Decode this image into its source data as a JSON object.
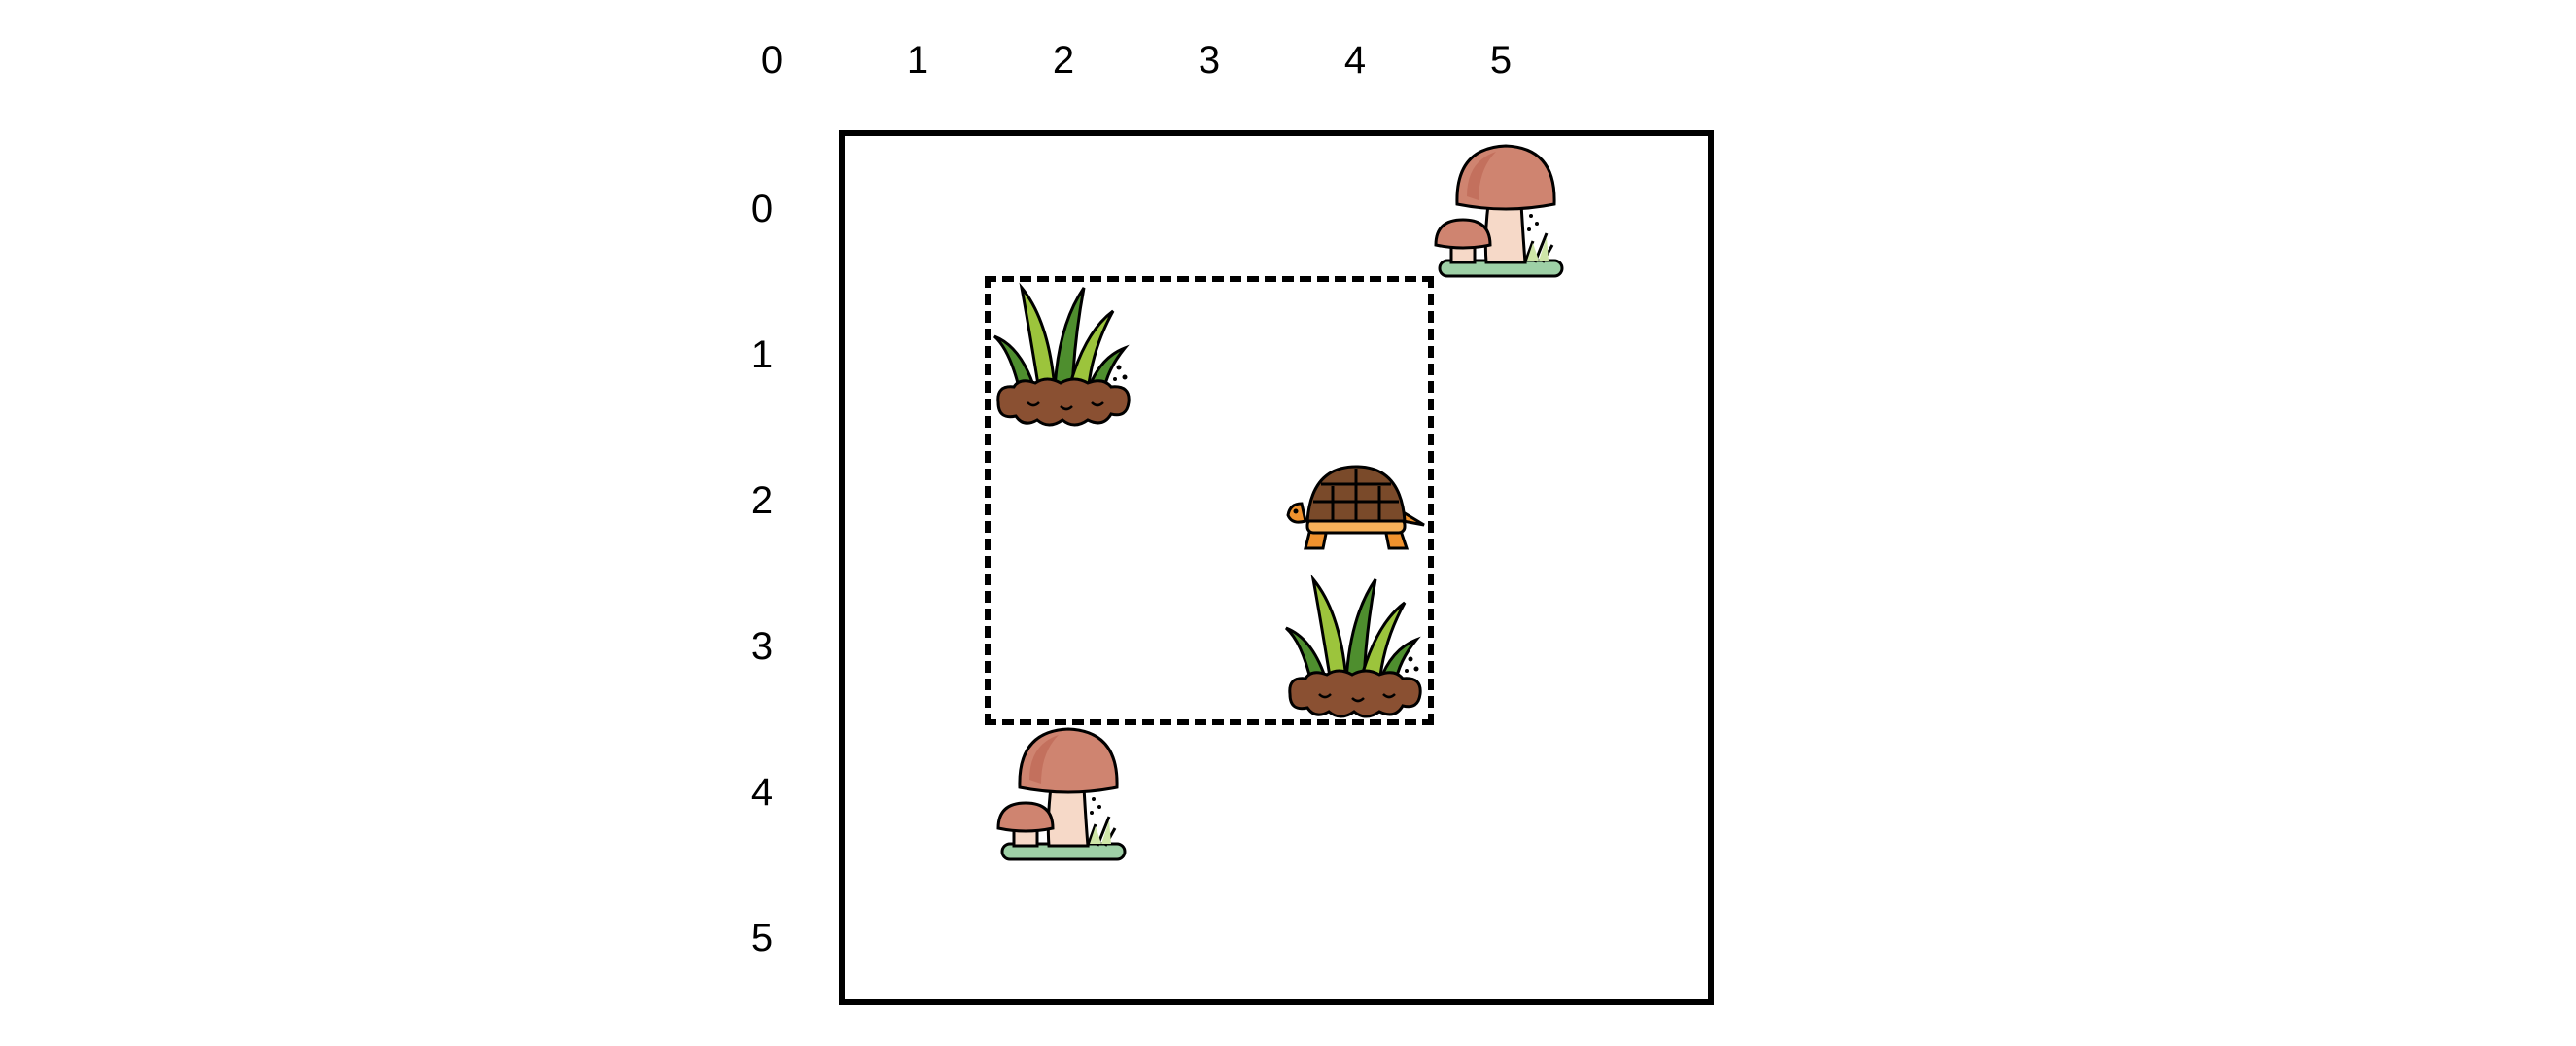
{
  "grid": {
    "cols": 6,
    "rows": 6,
    "col_labels": [
      "0",
      "1",
      "2",
      "3",
      "4",
      "5"
    ],
    "row_labels": [
      "0",
      "1",
      "2",
      "3",
      "4",
      "5"
    ]
  },
  "selection_region": {
    "col_start": 1,
    "row_start": 1,
    "col_end": 4,
    "row_end": 3
  },
  "pieces": [
    {
      "type": "mushroom",
      "icon": "mushroom-icon",
      "col": 4,
      "row": 0
    },
    {
      "type": "grass",
      "icon": "grass-icon",
      "col": 1,
      "row": 1
    },
    {
      "type": "turtle",
      "icon": "turtle-icon",
      "col": 3,
      "row": 2
    },
    {
      "type": "grass",
      "icon": "grass-icon",
      "col": 3,
      "row": 3
    },
    {
      "type": "mushroom",
      "icon": "mushroom-icon",
      "col": 1,
      "row": 4
    }
  ],
  "colors": {
    "mushroom_cap": "#CF8470",
    "mushroom_stem": "#F6D9C8",
    "grass_dark": "#4E8E2E",
    "grass_light": "#9CC43C",
    "soil": "#8A5032",
    "turtle_shell": "#7A4A2A",
    "turtle_skin": "#F0922E",
    "ground_green": "#9ED0A6"
  }
}
